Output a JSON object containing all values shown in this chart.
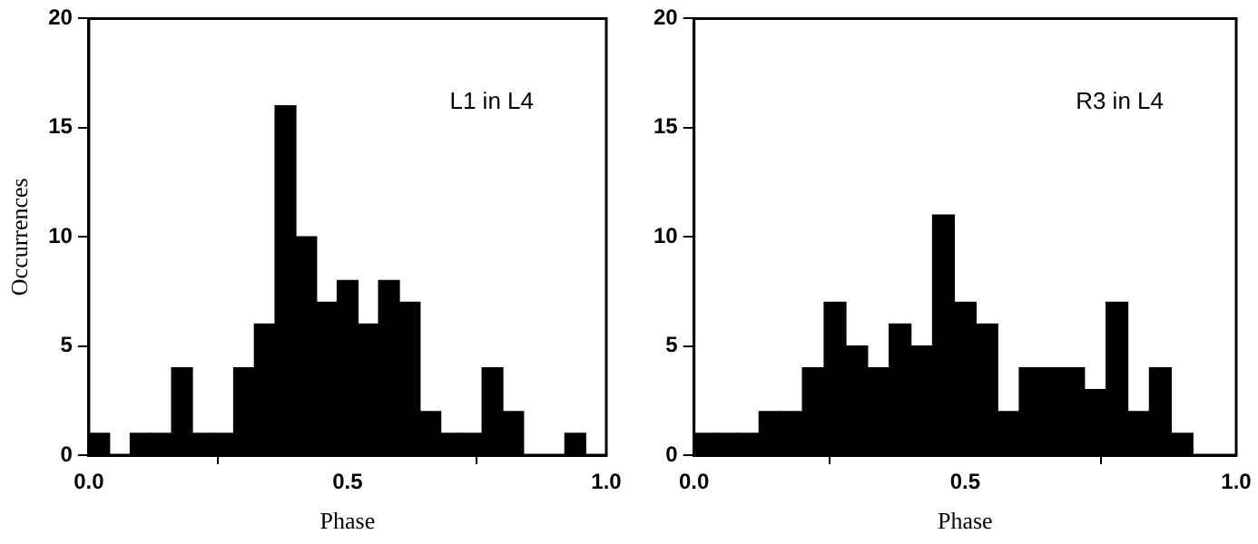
{
  "chart_data": [
    {
      "type": "histogram",
      "xlabel": "Phase",
      "ylabel": "Occurrences",
      "annotations": [
        "L1 in L4"
      ],
      "color": "#000000",
      "grid": false,
      "legend": false,
      "bins": [
        0,
        0.04,
        0.08,
        0.12,
        0.16,
        0.2,
        0.24,
        0.28,
        0.32,
        0.36,
        0.4,
        0.44,
        0.48,
        0.52,
        0.56,
        0.6,
        0.64,
        0.68,
        0.72,
        0.76,
        0.8,
        0.84,
        0.88,
        0.92,
        0.96,
        1
      ],
      "values": [
        1,
        0,
        1,
        1,
        4,
        1,
        1,
        4,
        6,
        16,
        10,
        7,
        8,
        6,
        8,
        7,
        2,
        1,
        1,
        4,
        2,
        0,
        0,
        1,
        0
      ],
      "xlim": [
        0,
        1
      ],
      "xticks": [
        {
          "value": 0,
          "label": "0.0"
        },
        {
          "value": 0.5,
          "label": "0.5"
        },
        {
          "value": 1,
          "label": "1.0"
        }
      ],
      "ylim": [
        0,
        20
      ],
      "yticks": [
        0,
        5,
        10,
        15,
        20
      ]
    },
    {
      "type": "histogram",
      "xlabel": "Phase",
      "annotations": [
        "R3 in L4"
      ],
      "color": "#000000",
      "grid": false,
      "legend": false,
      "bins": [
        0,
        0.04,
        0.08,
        0.12,
        0.16,
        0.2,
        0.24,
        0.28,
        0.32,
        0.36,
        0.4,
        0.44,
        0.48,
        0.52,
        0.56,
        0.6,
        0.64,
        0.68,
        0.72,
        0.76,
        0.8,
        0.84,
        0.88,
        0.92,
        0.96,
        1
      ],
      "values": [
        1,
        1,
        1,
        2,
        2,
        4,
        7,
        5,
        4,
        6,
        5,
        11,
        7,
        6,
        2,
        4,
        4,
        4,
        3,
        7,
        2,
        4,
        1,
        0,
        0
      ],
      "xlim": [
        0,
        1
      ],
      "xticks": [
        {
          "value": 0,
          "label": "0.0"
        },
        {
          "value": 0.5,
          "label": "0.5"
        },
        {
          "value": 1,
          "label": "1.0"
        }
      ],
      "ylim": [
        0,
        20
      ],
      "yticks": [
        0,
        5,
        10,
        15,
        20
      ]
    }
  ]
}
